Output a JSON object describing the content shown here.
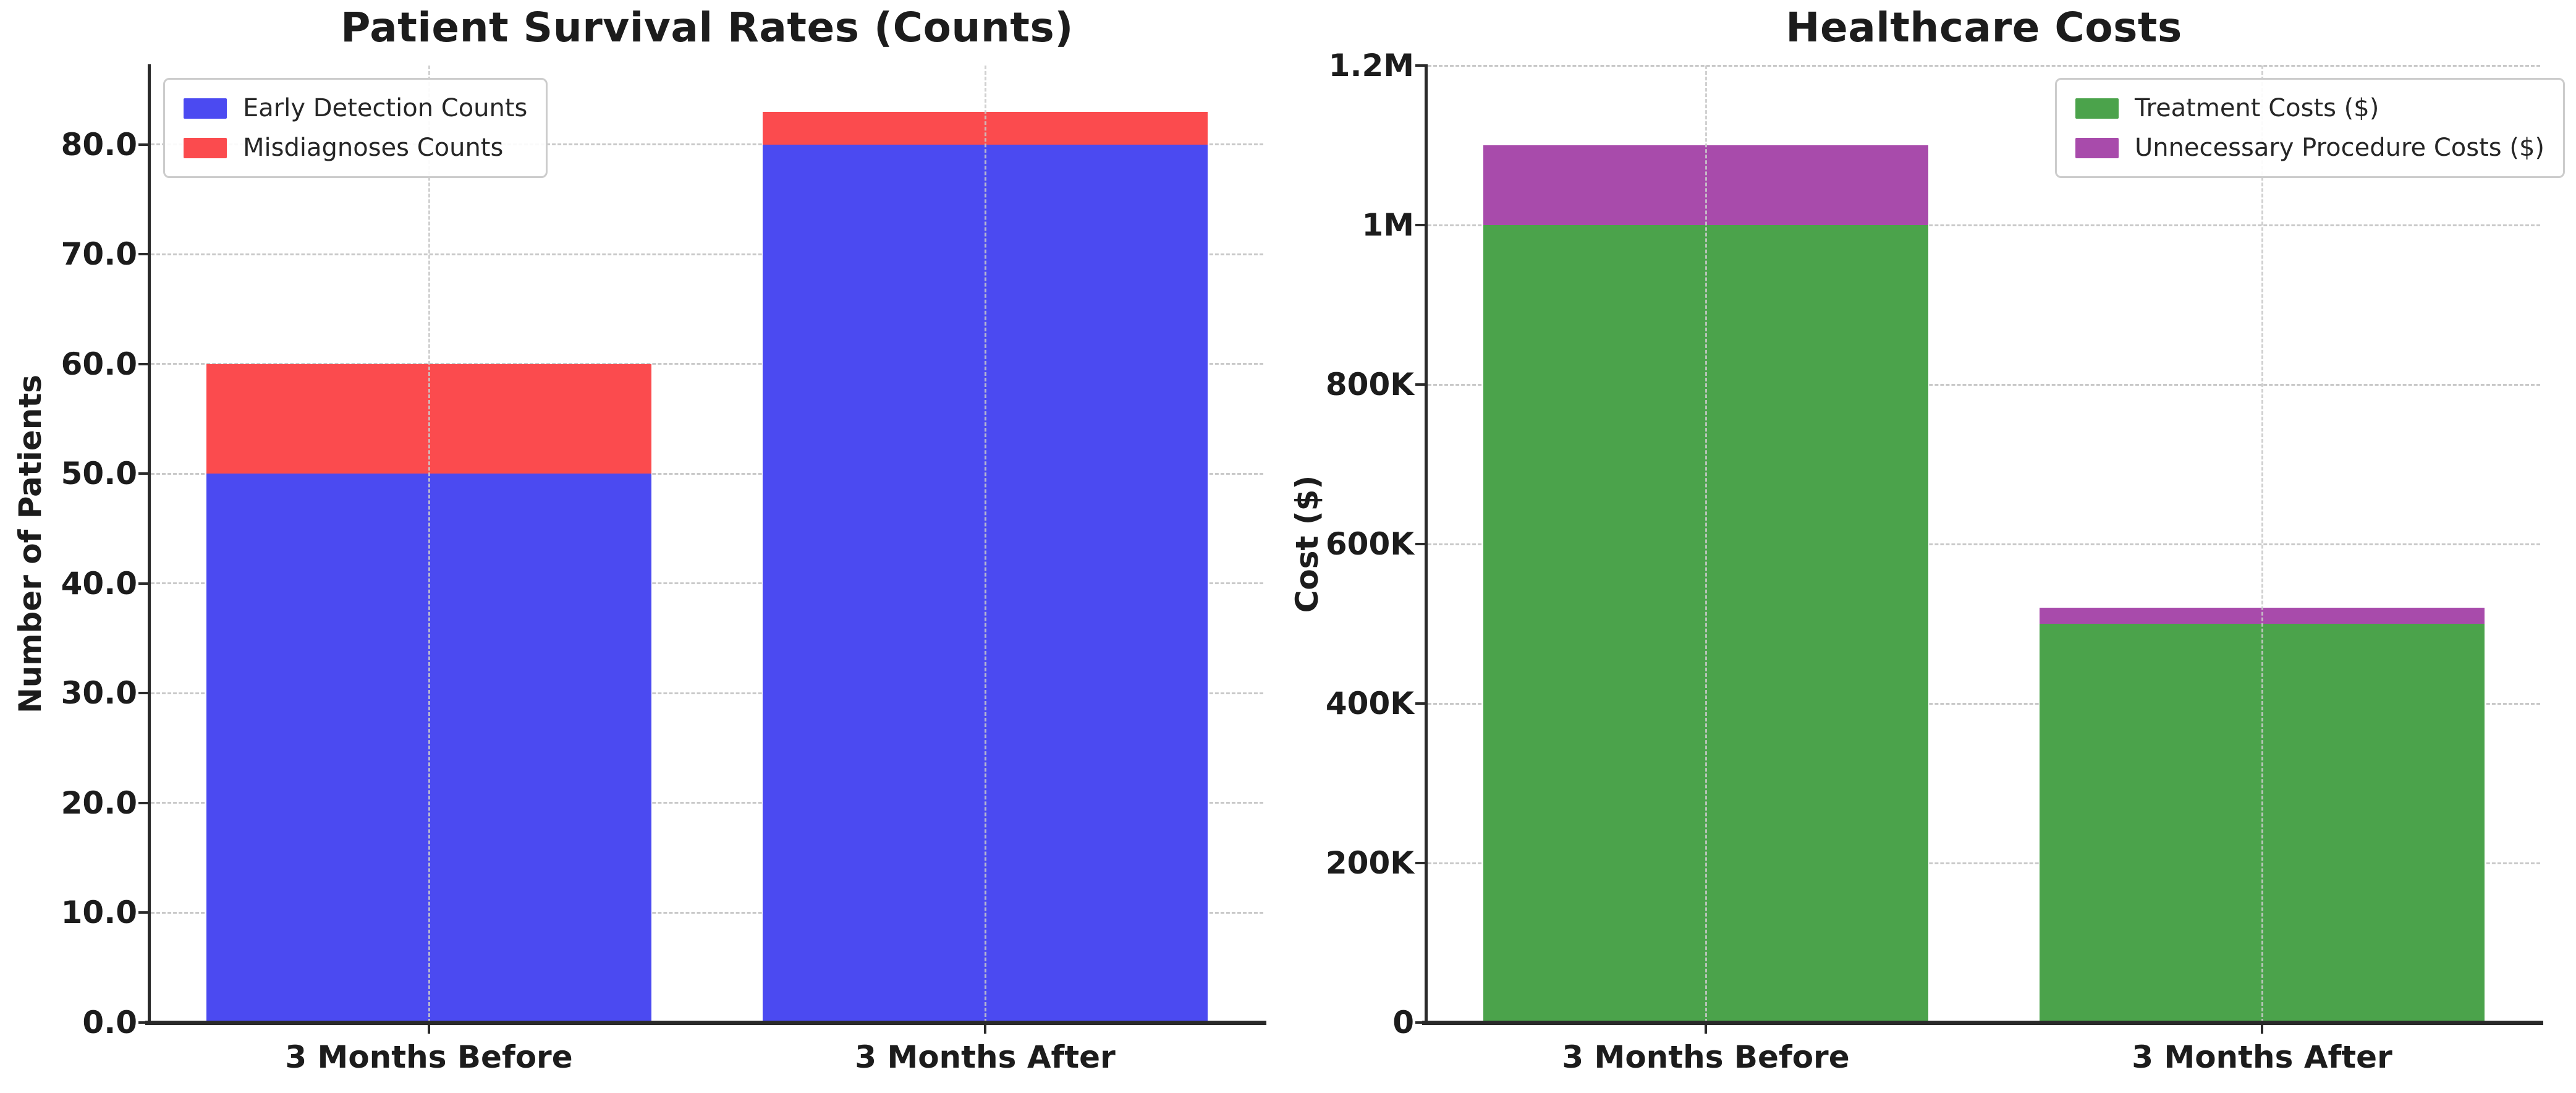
{
  "figure": {
    "background": "#ffffff",
    "text_color": "#1c1c1c",
    "grid_color": "#c9c9c9",
    "spine_color": "#2a2a2a"
  },
  "chart_data": [
    {
      "type": "bar",
      "stacked": true,
      "title": "Patient Survival Rates (Counts)",
      "xlabel": "",
      "ylabel": "Number of Patients",
      "categories": [
        "3 Months Before",
        "3 Months After"
      ],
      "series": [
        {
          "name": "Early Detection Counts",
          "color": "#4b4af1",
          "values": [
            50,
            80
          ]
        },
        {
          "name": "Misdiagnoses Counts",
          "color": "#fb4b4e",
          "values": [
            10,
            3
          ]
        }
      ],
      "stack_totals": [
        60,
        83
      ],
      "ylim": [
        0,
        87.2
      ],
      "yticks": [
        {
          "value": 0,
          "label": "0.0"
        },
        {
          "value": 10,
          "label": "10.0"
        },
        {
          "value": 20,
          "label": "20.0"
        },
        {
          "value": 30,
          "label": "30.0"
        },
        {
          "value": 40,
          "label": "40.0"
        },
        {
          "value": 50,
          "label": "50.0"
        },
        {
          "value": 60,
          "label": "60.0"
        },
        {
          "value": 70,
          "label": "70.0"
        },
        {
          "value": 80,
          "label": "80.0"
        }
      ],
      "legend_position": "upper-left",
      "grid": "dashed-both-axes"
    },
    {
      "type": "bar",
      "stacked": true,
      "title": "Healthcare Costs",
      "xlabel": "",
      "ylabel": "Cost ($)",
      "categories": [
        "3 Months Before",
        "3 Months After"
      ],
      "series": [
        {
          "name": "Treatment Costs ($)",
          "color": "#4ba34b",
          "values": [
            1000000,
            500000
          ]
        },
        {
          "name": "Unnecessary Procedure Costs ($)",
          "color": "#a84bab",
          "values": [
            100000,
            20000
          ]
        }
      ],
      "stack_totals": [
        1100000,
        520000
      ],
      "ylim": [
        0,
        1200000
      ],
      "yticks": [
        {
          "value": 0,
          "label": "0"
        },
        {
          "value": 200000,
          "label": "200K"
        },
        {
          "value": 400000,
          "label": "400K"
        },
        {
          "value": 600000,
          "label": "600K"
        },
        {
          "value": 800000,
          "label": "800K"
        },
        {
          "value": 1000000,
          "label": "1M"
        },
        {
          "value": 1200000,
          "label": "1.2M"
        }
      ],
      "legend_position": "upper-right",
      "grid": "dashed-both-axes"
    }
  ]
}
